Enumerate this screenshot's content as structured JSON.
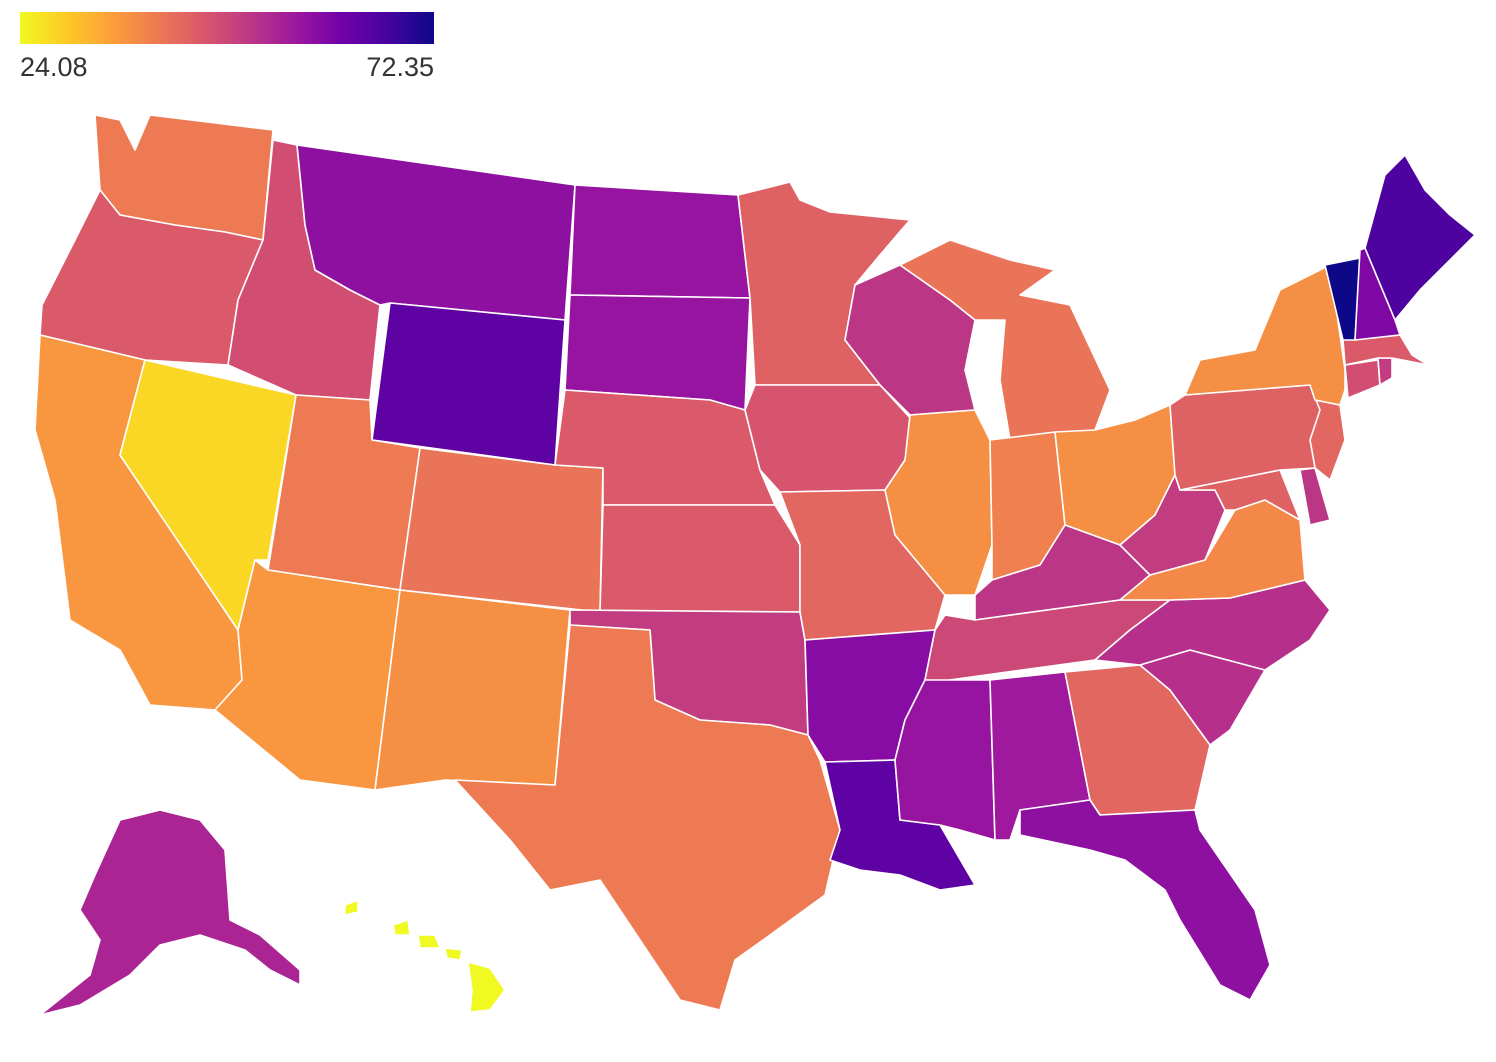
{
  "legend": {
    "min_label": "24.08",
    "max_label": "72.35",
    "min": 24.08,
    "max": 72.35,
    "stops": [
      "#f0f921",
      "#fdca26",
      "#fb9f3a",
      "#ed7953",
      "#d8576b",
      "#bd3786",
      "#9c179e",
      "#7201a8",
      "#46039f",
      "#0d0887"
    ]
  },
  "states": [
    {
      "id": "WA",
      "value": 40
    },
    {
      "id": "OR",
      "value": 45
    },
    {
      "id": "CA",
      "value": 36
    },
    {
      "id": "NV",
      "value": 28
    },
    {
      "id": "ID",
      "value": 47
    },
    {
      "id": "MT",
      "value": 58
    },
    {
      "id": "WY",
      "value": 64
    },
    {
      "id": "UT",
      "value": 40
    },
    {
      "id": "AZ",
      "value": 36
    },
    {
      "id": "CO",
      "value": 41
    },
    {
      "id": "NM",
      "value": 37
    },
    {
      "id": "ND",
      "value": 57
    },
    {
      "id": "SD",
      "value": 57
    },
    {
      "id": "NE",
      "value": 45
    },
    {
      "id": "KS",
      "value": 45
    },
    {
      "id": "OK",
      "value": 50
    },
    {
      "id": "TX",
      "value": 40
    },
    {
      "id": "MN",
      "value": 44
    },
    {
      "id": "IA",
      "value": 46
    },
    {
      "id": "MO",
      "value": 43
    },
    {
      "id": "AR",
      "value": 59
    },
    {
      "id": "LA",
      "value": 64
    },
    {
      "id": "WI",
      "value": 51
    },
    {
      "id": "IL",
      "value": 37
    },
    {
      "id": "MI",
      "value": 41
    },
    {
      "id": "IN",
      "value": 39
    },
    {
      "id": "OH",
      "value": 37
    },
    {
      "id": "KY",
      "value": 51
    },
    {
      "id": "TN",
      "value": 48
    },
    {
      "id": "MS",
      "value": 57
    },
    {
      "id": "AL",
      "value": 56
    },
    {
      "id": "GA",
      "value": 43
    },
    {
      "id": "FL",
      "value": 58
    },
    {
      "id": "SC",
      "value": 52
    },
    {
      "id": "NC",
      "value": 52
    },
    {
      "id": "VA",
      "value": 38
    },
    {
      "id": "WV",
      "value": 50
    },
    {
      "id": "MD",
      "value": 44
    },
    {
      "id": "DE",
      "value": 51
    },
    {
      "id": "NJ",
      "value": 43
    },
    {
      "id": "PA",
      "value": 44
    },
    {
      "id": "NY",
      "value": 37
    },
    {
      "id": "CT",
      "value": 47
    },
    {
      "id": "RI",
      "value": 50
    },
    {
      "id": "MA",
      "value": 45
    },
    {
      "id": "VT",
      "value": 72.35
    },
    {
      "id": "NH",
      "value": 60
    },
    {
      "id": "ME",
      "value": 66
    },
    {
      "id": "AK",
      "value": 54
    },
    {
      "id": "HI",
      "value": 24.08
    }
  ]
}
